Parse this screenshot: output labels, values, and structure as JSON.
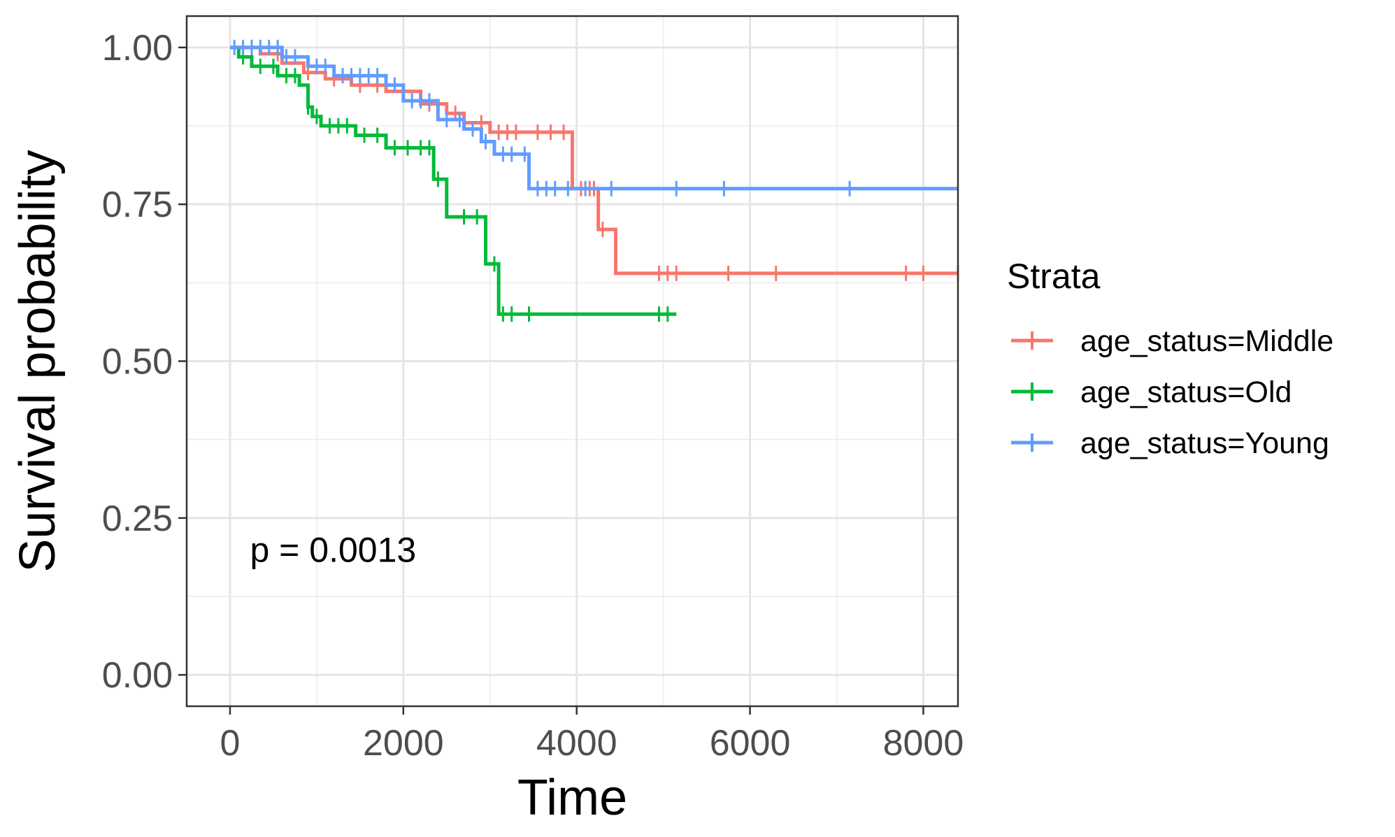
{
  "chart_data": {
    "type": "line",
    "subtype": "kaplan-meier step curves",
    "xlabel": "Time",
    "ylabel": "Survival probability",
    "xlim": [
      -500,
      8400
    ],
    "ylim": [
      -0.05,
      1.05
    ],
    "x_ticks": [
      0,
      2000,
      4000,
      6000,
      8000
    ],
    "x_tick_labels": [
      "0",
      "2000",
      "4000",
      "6000",
      "8000"
    ],
    "y_ticks": [
      0,
      0.25,
      0.5,
      0.75,
      1.0
    ],
    "y_tick_labels": [
      "0.00",
      "0.25",
      "0.50",
      "0.75",
      "1.00"
    ],
    "grid": true,
    "legend": {
      "title": "Strata",
      "position": "right"
    },
    "annotation": "p = 0.0013",
    "series": [
      {
        "name": "age_status=Middle",
        "color": "#F8766D",
        "steps": [
          [
            0,
            1.0
          ],
          [
            350,
            0.99
          ],
          [
            600,
            0.975
          ],
          [
            850,
            0.96
          ],
          [
            1100,
            0.95
          ],
          [
            1400,
            0.94
          ],
          [
            1800,
            0.93
          ],
          [
            2200,
            0.91
          ],
          [
            2500,
            0.895
          ],
          [
            2700,
            0.88
          ],
          [
            3000,
            0.865
          ],
          [
            3950,
            0.775
          ],
          [
            4250,
            0.71
          ],
          [
            4450,
            0.64
          ],
          [
            8400,
            0.64
          ]
        ],
        "censor_times": [
          250,
          550,
          900,
          1200,
          1500,
          1700,
          2000,
          2300,
          2600,
          2900,
          3100,
          3200,
          3300,
          3550,
          3700,
          3850,
          4050,
          4150,
          4200,
          4300,
          4950,
          5050,
          5150,
          5750,
          6300,
          7800,
          8000,
          8400
        ]
      },
      {
        "name": "age_status=Old",
        "color": "#00BA38",
        "steps": [
          [
            0,
            1.0
          ],
          [
            100,
            0.985
          ],
          [
            250,
            0.97
          ],
          [
            550,
            0.955
          ],
          [
            800,
            0.94
          ],
          [
            900,
            0.905
          ],
          [
            950,
            0.89
          ],
          [
            1050,
            0.875
          ],
          [
            1450,
            0.86
          ],
          [
            1800,
            0.84
          ],
          [
            2350,
            0.79
          ],
          [
            2500,
            0.73
          ],
          [
            2950,
            0.655
          ],
          [
            3100,
            0.575
          ],
          [
            5150,
            0.575
          ]
        ],
        "censor_times": [
          150,
          350,
          500,
          650,
          750,
          900,
          1000,
          1150,
          1250,
          1350,
          1550,
          1700,
          1900,
          2050,
          2200,
          2300,
          2400,
          2700,
          2850,
          3050,
          3150,
          3250,
          3450,
          4950,
          5050
        ]
      },
      {
        "name": "age_status=Young",
        "color": "#619CFF",
        "steps": [
          [
            0,
            1.0
          ],
          [
            600,
            0.985
          ],
          [
            900,
            0.97
          ],
          [
            1200,
            0.955
          ],
          [
            1800,
            0.94
          ],
          [
            2000,
            0.915
          ],
          [
            2400,
            0.885
          ],
          [
            2700,
            0.87
          ],
          [
            2900,
            0.85
          ],
          [
            3050,
            0.83
          ],
          [
            3450,
            0.775
          ],
          [
            8400,
            0.775
          ]
        ],
        "censor_times": [
          50,
          150,
          250,
          350,
          450,
          550,
          650,
          750,
          1000,
          1100,
          1300,
          1400,
          1500,
          1600,
          1700,
          1900,
          2100,
          2200,
          2300,
          2500,
          2650,
          2800,
          2950,
          3150,
          3250,
          3400,
          3550,
          3650,
          3750,
          3900,
          4100,
          4400,
          5150,
          5700,
          7150
        ]
      }
    ]
  }
}
